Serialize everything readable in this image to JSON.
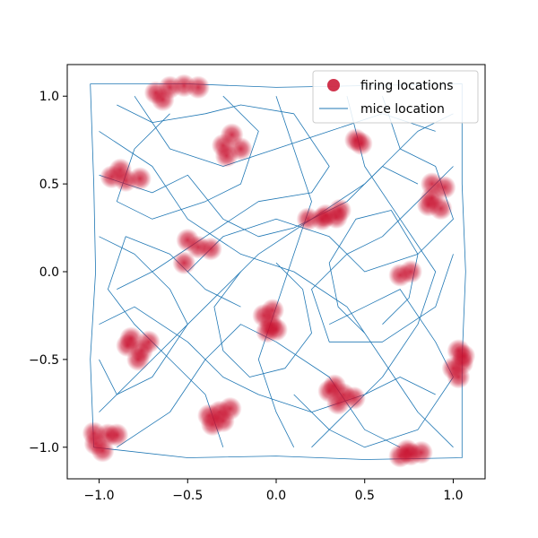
{
  "chart_data": {
    "type": "scatter",
    "title": "",
    "xlabel": "",
    "ylabel": "",
    "xlim": [
      -1.18,
      1.18
    ],
    "ylim": [
      -1.18,
      1.18
    ],
    "x_ticks": [
      -1.0,
      -0.5,
      0.0,
      0.5,
      1.0
    ],
    "y_ticks": [
      -1.0,
      -0.5,
      0.0,
      0.5,
      1.0
    ],
    "x_tick_labels": [
      "−1.0",
      "−0.5",
      "0.0",
      "0.5",
      "1.0"
    ],
    "y_tick_labels": [
      "−1.0",
      "−0.5",
      "0.0",
      "0.5",
      "1.0"
    ],
    "grid": false,
    "legend": {
      "position": "top-right",
      "entries": [
        "firing locations",
        "mice location"
      ]
    },
    "colors": {
      "firing": "#c8102e",
      "trajectory": "#1f77b4"
    },
    "series": [
      {
        "name": "firing locations",
        "kind": "scatter",
        "clusters": [
          [
            -0.68,
            1.02
          ],
          [
            -0.6,
            1.05
          ],
          [
            -0.52,
            1.06
          ],
          [
            -0.44,
            1.05
          ],
          [
            -0.64,
            0.98
          ],
          [
            -0.3,
            0.72
          ],
          [
            -0.25,
            0.78
          ],
          [
            -0.2,
            0.7
          ],
          [
            -0.28,
            0.66
          ],
          [
            -0.93,
            0.54
          ],
          [
            -0.85,
            0.52
          ],
          [
            -0.77,
            0.53
          ],
          [
            -0.88,
            0.58
          ],
          [
            -0.5,
            0.18
          ],
          [
            -0.44,
            0.14
          ],
          [
            -0.37,
            0.13
          ],
          [
            -0.52,
            0.05
          ],
          [
            0.18,
            0.3
          ],
          [
            0.26,
            0.3
          ],
          [
            0.34,
            0.31
          ],
          [
            0.36,
            0.35
          ],
          [
            0.28,
            0.32
          ],
          [
            0.45,
            0.75
          ],
          [
            0.48,
            0.73
          ],
          [
            0.88,
            0.5
          ],
          [
            0.95,
            0.48
          ],
          [
            0.88,
            0.42
          ],
          [
            0.93,
            0.36
          ],
          [
            0.86,
            0.38
          ],
          [
            0.7,
            -0.02
          ],
          [
            0.76,
            0.0
          ],
          [
            -0.07,
            -0.25
          ],
          [
            -0.03,
            -0.3
          ],
          [
            0.0,
            -0.33
          ],
          [
            -0.05,
            -0.34
          ],
          [
            -0.02,
            -0.22
          ],
          [
            -0.82,
            -0.38
          ],
          [
            -0.76,
            -0.45
          ],
          [
            -0.72,
            -0.4
          ],
          [
            -0.78,
            -0.5
          ],
          [
            -0.84,
            -0.42
          ],
          [
            1.03,
            -0.45
          ],
          [
            1.05,
            -0.52
          ],
          [
            1.03,
            -0.6
          ],
          [
            1.06,
            -0.48
          ],
          [
            1.0,
            -0.55
          ],
          [
            0.33,
            -0.65
          ],
          [
            0.38,
            -0.7
          ],
          [
            0.44,
            -0.72
          ],
          [
            0.35,
            -0.75
          ],
          [
            0.3,
            -0.68
          ],
          [
            -0.38,
            -0.82
          ],
          [
            -0.32,
            -0.8
          ],
          [
            -0.26,
            -0.78
          ],
          [
            -0.36,
            -0.87
          ],
          [
            -0.3,
            -0.85
          ],
          [
            -1.03,
            -0.92
          ],
          [
            -1.02,
            -0.98
          ],
          [
            -0.98,
            -1.02
          ],
          [
            -0.95,
            -0.93
          ],
          [
            -0.9,
            -0.93
          ],
          [
            0.7,
            -1.05
          ],
          [
            0.76,
            -1.04
          ],
          [
            0.82,
            -1.03
          ],
          [
            0.74,
            -1.02
          ]
        ]
      },
      {
        "name": "mice location",
        "kind": "line",
        "paths": [
          [
            [
              -1.05,
              1.07
            ],
            [
              -1.03,
              0.5
            ],
            [
              -1.02,
              0.0
            ],
            [
              -1.05,
              -0.5
            ],
            [
              -1.03,
              -1.0
            ],
            [
              -0.5,
              -1.06
            ],
            [
              0.0,
              -1.05
            ],
            [
              0.5,
              -1.07
            ],
            [
              1.05,
              -1.06
            ],
            [
              1.05,
              -0.5
            ],
            [
              1.07,
              0.0
            ],
            [
              1.05,
              0.5
            ],
            [
              1.05,
              1.07
            ],
            [
              0.5,
              1.06
            ],
            [
              0.0,
              1.05
            ],
            [
              -0.5,
              1.07
            ],
            [
              -1.05,
              1.07
            ]
          ],
          [
            [
              -1.0,
              0.8
            ],
            [
              -0.7,
              0.6
            ],
            [
              -0.5,
              0.3
            ],
            [
              -0.2,
              0.1
            ],
            [
              0.1,
              0.0
            ],
            [
              0.4,
              -0.2
            ],
            [
              0.6,
              -0.5
            ],
            [
              0.8,
              -0.8
            ],
            [
              1.0,
              -1.0
            ]
          ],
          [
            [
              -1.0,
              -0.8
            ],
            [
              -0.7,
              -0.5
            ],
            [
              -0.4,
              -0.2
            ],
            [
              -0.1,
              0.1
            ],
            [
              0.2,
              0.3
            ],
            [
              0.5,
              0.5
            ],
            [
              0.8,
              0.8
            ],
            [
              1.0,
              0.9
            ]
          ],
          [
            [
              -0.8,
              1.0
            ],
            [
              -0.6,
              0.7
            ],
            [
              -0.3,
              0.6
            ],
            [
              0.0,
              0.7
            ],
            [
              0.3,
              0.8
            ],
            [
              0.6,
              0.9
            ],
            [
              0.9,
              0.8
            ]
          ],
          [
            [
              -0.9,
              -1.0
            ],
            [
              -0.6,
              -0.8
            ],
            [
              -0.4,
              -0.5
            ],
            [
              -0.2,
              -0.3
            ],
            [
              0.0,
              -0.4
            ],
            [
              0.3,
              -0.6
            ],
            [
              0.5,
              -0.9
            ],
            [
              0.7,
              -1.0
            ]
          ],
          [
            [
              -1.0,
              0.2
            ],
            [
              -0.8,
              0.1
            ],
            [
              -0.6,
              -0.1
            ],
            [
              -0.5,
              -0.3
            ],
            [
              -0.7,
              -0.6
            ],
            [
              -0.9,
              -0.7
            ],
            [
              -1.0,
              -0.5
            ]
          ],
          [
            [
              0.0,
              1.0
            ],
            [
              0.1,
              0.7
            ],
            [
              0.2,
              0.4
            ],
            [
              0.1,
              0.1
            ],
            [
              0.0,
              -0.2
            ],
            [
              -0.1,
              -0.5
            ],
            [
              0.0,
              -0.8
            ],
            [
              0.1,
              -1.0
            ]
          ],
          [
            [
              0.4,
              1.0
            ],
            [
              0.5,
              0.6
            ],
            [
              0.7,
              0.3
            ],
            [
              0.9,
              0.0
            ],
            [
              0.8,
              -0.3
            ],
            [
              0.6,
              -0.6
            ],
            [
              0.4,
              -0.8
            ],
            [
              0.2,
              -1.0
            ]
          ],
          [
            [
              -0.6,
              0.9
            ],
            [
              -0.8,
              0.7
            ],
            [
              -0.9,
              0.4
            ],
            [
              -0.7,
              0.3
            ],
            [
              -0.4,
              0.4
            ],
            [
              -0.2,
              0.5
            ],
            [
              -0.1,
              0.8
            ],
            [
              -0.3,
              1.0
            ]
          ],
          [
            [
              1.0,
              0.6
            ],
            [
              0.8,
              0.4
            ],
            [
              0.6,
              0.2
            ],
            [
              0.4,
              0.1
            ],
            [
              0.2,
              -0.1
            ],
            [
              0.3,
              -0.4
            ],
            [
              0.6,
              -0.4
            ],
            [
              0.9,
              -0.2
            ],
            [
              1.0,
              0.1
            ]
          ],
          [
            [
              -1.0,
              -0.3
            ],
            [
              -0.8,
              -0.2
            ],
            [
              -0.5,
              -0.4
            ],
            [
              -0.3,
              -0.6
            ],
            [
              -0.1,
              -0.7
            ],
            [
              0.2,
              -0.8
            ],
            [
              0.5,
              -0.7
            ],
            [
              0.7,
              -0.6
            ],
            [
              0.9,
              -0.7
            ]
          ],
          [
            [
              -0.9,
              0.95
            ],
            [
              -0.7,
              0.85
            ],
            [
              -0.4,
              0.9
            ],
            [
              -0.2,
              0.95
            ],
            [
              0.1,
              0.9
            ],
            [
              0.3,
              0.6
            ],
            [
              0.2,
              0.45
            ],
            [
              -0.1,
              0.4
            ],
            [
              -0.4,
              0.2
            ],
            [
              -0.7,
              0.0
            ],
            [
              -0.9,
              -0.1
            ]
          ],
          [
            [
              0.6,
              1.0
            ],
            [
              0.7,
              0.7
            ],
            [
              0.9,
              0.6
            ],
            [
              1.0,
              0.3
            ],
            [
              0.8,
              0.1
            ],
            [
              0.5,
              0.0
            ],
            [
              0.3,
              0.2
            ],
            [
              0.0,
              0.3
            ],
            [
              -0.3,
              0.2
            ],
            [
              -0.5,
              0.0
            ]
          ],
          [
            [
              -0.3,
              -1.0
            ],
            [
              -0.4,
              -0.7
            ],
            [
              -0.6,
              -0.5
            ],
            [
              -0.8,
              -0.3
            ],
            [
              -0.95,
              -0.1
            ],
            [
              -0.85,
              0.2
            ],
            [
              -0.6,
              0.1
            ],
            [
              -0.4,
              -0.1
            ],
            [
              -0.2,
              -0.2
            ]
          ],
          [
            [
              0.3,
              -0.3
            ],
            [
              0.5,
              -0.2
            ],
            [
              0.7,
              -0.1
            ],
            [
              0.9,
              -0.4
            ],
            [
              1.0,
              -0.6
            ],
            [
              0.8,
              -0.9
            ],
            [
              0.5,
              -1.0
            ],
            [
              0.3,
              -0.9
            ],
            [
              0.1,
              -0.7
            ]
          ],
          [
            [
              -1.0,
              0.55
            ],
            [
              -0.7,
              0.45
            ],
            [
              -0.5,
              0.55
            ],
            [
              -0.3,
              0.3
            ],
            [
              -0.1,
              0.2
            ],
            [
              0.1,
              0.25
            ],
            [
              0.4,
              0.4
            ],
            [
              0.6,
              0.6
            ],
            [
              0.8,
              0.5
            ]
          ],
          [
            [
              -0.2,
              0.0
            ],
            [
              -0.35,
              -0.2
            ],
            [
              -0.3,
              -0.45
            ],
            [
              -0.15,
              -0.6
            ],
            [
              0.05,
              -0.55
            ],
            [
              0.2,
              -0.35
            ],
            [
              0.15,
              -0.1
            ],
            [
              0.0,
              0.05
            ]
          ],
          [
            [
              0.6,
              -0.3
            ],
            [
              0.75,
              -0.15
            ],
            [
              0.8,
              0.1
            ],
            [
              0.65,
              0.35
            ],
            [
              0.45,
              0.3
            ],
            [
              0.3,
              0.05
            ],
            [
              0.35,
              -0.2
            ],
            [
              0.5,
              -0.35
            ]
          ]
        ]
      }
    ]
  }
}
